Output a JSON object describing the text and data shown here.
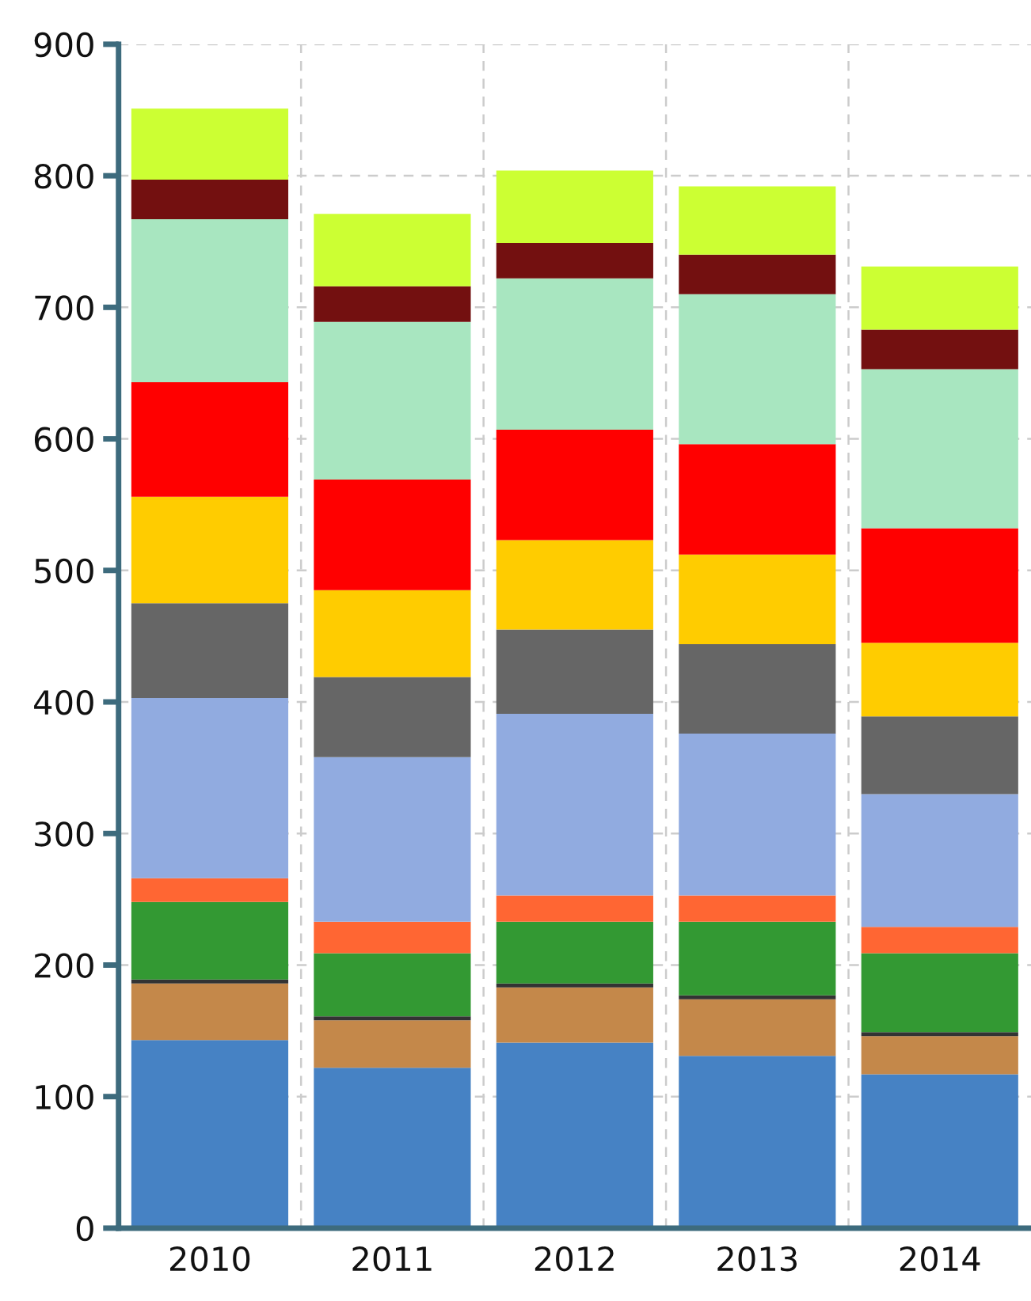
{
  "chart_data": {
    "type": "bar",
    "stacked": true,
    "categories": [
      "2010",
      "2011",
      "2012",
      "2013",
      "2014"
    ],
    "series": [
      {
        "color": "#4682c4",
        "values": [
          143,
          122,
          141,
          131,
          117
        ]
      },
      {
        "color": "#c4884a",
        "values": [
          43,
          36,
          42,
          43,
          29
        ]
      },
      {
        "color": "#333333",
        "values": [
          3,
          3,
          3,
          3,
          3
        ]
      },
      {
        "color": "#339933",
        "values": [
          59,
          48,
          47,
          56,
          60
        ]
      },
      {
        "color": "#ff6633",
        "values": [
          18,
          24,
          20,
          20,
          20
        ]
      },
      {
        "color": "#91abe0",
        "values": [
          137,
          125,
          138,
          123,
          101
        ]
      },
      {
        "color": "#666666",
        "values": [
          72,
          61,
          64,
          68,
          59
        ]
      },
      {
        "color": "#ffcc00",
        "values": [
          81,
          66,
          68,
          68,
          56
        ]
      },
      {
        "color": "#ff0000",
        "values": [
          87,
          84,
          84,
          84,
          87
        ]
      },
      {
        "color": "#a8e6c0",
        "values": [
          124,
          120,
          115,
          114,
          121
        ]
      },
      {
        "color": "#731010",
        "values": [
          30,
          27,
          27,
          30,
          30
        ]
      },
      {
        "color": "#ccff33",
        "values": [
          54,
          55,
          55,
          52,
          48
        ]
      }
    ],
    "ylim": [
      0,
      900
    ],
    "yticks": [
      0,
      100,
      200,
      300,
      400,
      500,
      600,
      700,
      800,
      900
    ],
    "grid": true
  }
}
